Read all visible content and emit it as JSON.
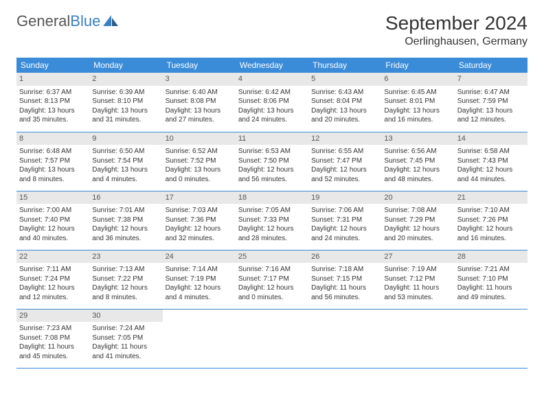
{
  "logo": {
    "text1": "General",
    "text2": "Blue"
  },
  "title": "September 2024",
  "location": "Oerlinghausen, Germany",
  "colors": {
    "header_bg": "#3a8bd8",
    "header_text": "#ffffff",
    "daynum_bg": "#e8e8e8",
    "border": "#3a8bd8",
    "text": "#333333",
    "logo_blue": "#3a7fc4"
  },
  "weekdays": [
    "Sunday",
    "Monday",
    "Tuesday",
    "Wednesday",
    "Thursday",
    "Friday",
    "Saturday"
  ],
  "days": [
    {
      "n": "1",
      "sr": "Sunrise: 6:37 AM",
      "ss": "Sunset: 8:13 PM",
      "dl": "Daylight: 13 hours and 35 minutes."
    },
    {
      "n": "2",
      "sr": "Sunrise: 6:39 AM",
      "ss": "Sunset: 8:10 PM",
      "dl": "Daylight: 13 hours and 31 minutes."
    },
    {
      "n": "3",
      "sr": "Sunrise: 6:40 AM",
      "ss": "Sunset: 8:08 PM",
      "dl": "Daylight: 13 hours and 27 minutes."
    },
    {
      "n": "4",
      "sr": "Sunrise: 6:42 AM",
      "ss": "Sunset: 8:06 PM",
      "dl": "Daylight: 13 hours and 24 minutes."
    },
    {
      "n": "5",
      "sr": "Sunrise: 6:43 AM",
      "ss": "Sunset: 8:04 PM",
      "dl": "Daylight: 13 hours and 20 minutes."
    },
    {
      "n": "6",
      "sr": "Sunrise: 6:45 AM",
      "ss": "Sunset: 8:01 PM",
      "dl": "Daylight: 13 hours and 16 minutes."
    },
    {
      "n": "7",
      "sr": "Sunrise: 6:47 AM",
      "ss": "Sunset: 7:59 PM",
      "dl": "Daylight: 13 hours and 12 minutes."
    },
    {
      "n": "8",
      "sr": "Sunrise: 6:48 AM",
      "ss": "Sunset: 7:57 PM",
      "dl": "Daylight: 13 hours and 8 minutes."
    },
    {
      "n": "9",
      "sr": "Sunrise: 6:50 AM",
      "ss": "Sunset: 7:54 PM",
      "dl": "Daylight: 13 hours and 4 minutes."
    },
    {
      "n": "10",
      "sr": "Sunrise: 6:52 AM",
      "ss": "Sunset: 7:52 PM",
      "dl": "Daylight: 13 hours and 0 minutes."
    },
    {
      "n": "11",
      "sr": "Sunrise: 6:53 AM",
      "ss": "Sunset: 7:50 PM",
      "dl": "Daylight: 12 hours and 56 minutes."
    },
    {
      "n": "12",
      "sr": "Sunrise: 6:55 AM",
      "ss": "Sunset: 7:47 PM",
      "dl": "Daylight: 12 hours and 52 minutes."
    },
    {
      "n": "13",
      "sr": "Sunrise: 6:56 AM",
      "ss": "Sunset: 7:45 PM",
      "dl": "Daylight: 12 hours and 48 minutes."
    },
    {
      "n": "14",
      "sr": "Sunrise: 6:58 AM",
      "ss": "Sunset: 7:43 PM",
      "dl": "Daylight: 12 hours and 44 minutes."
    },
    {
      "n": "15",
      "sr": "Sunrise: 7:00 AM",
      "ss": "Sunset: 7:40 PM",
      "dl": "Daylight: 12 hours and 40 minutes."
    },
    {
      "n": "16",
      "sr": "Sunrise: 7:01 AM",
      "ss": "Sunset: 7:38 PM",
      "dl": "Daylight: 12 hours and 36 minutes."
    },
    {
      "n": "17",
      "sr": "Sunrise: 7:03 AM",
      "ss": "Sunset: 7:36 PM",
      "dl": "Daylight: 12 hours and 32 minutes."
    },
    {
      "n": "18",
      "sr": "Sunrise: 7:05 AM",
      "ss": "Sunset: 7:33 PM",
      "dl": "Daylight: 12 hours and 28 minutes."
    },
    {
      "n": "19",
      "sr": "Sunrise: 7:06 AM",
      "ss": "Sunset: 7:31 PM",
      "dl": "Daylight: 12 hours and 24 minutes."
    },
    {
      "n": "20",
      "sr": "Sunrise: 7:08 AM",
      "ss": "Sunset: 7:29 PM",
      "dl": "Daylight: 12 hours and 20 minutes."
    },
    {
      "n": "21",
      "sr": "Sunrise: 7:10 AM",
      "ss": "Sunset: 7:26 PM",
      "dl": "Daylight: 12 hours and 16 minutes."
    },
    {
      "n": "22",
      "sr": "Sunrise: 7:11 AM",
      "ss": "Sunset: 7:24 PM",
      "dl": "Daylight: 12 hours and 12 minutes."
    },
    {
      "n": "23",
      "sr": "Sunrise: 7:13 AM",
      "ss": "Sunset: 7:22 PM",
      "dl": "Daylight: 12 hours and 8 minutes."
    },
    {
      "n": "24",
      "sr": "Sunrise: 7:14 AM",
      "ss": "Sunset: 7:19 PM",
      "dl": "Daylight: 12 hours and 4 minutes."
    },
    {
      "n": "25",
      "sr": "Sunrise: 7:16 AM",
      "ss": "Sunset: 7:17 PM",
      "dl": "Daylight: 12 hours and 0 minutes."
    },
    {
      "n": "26",
      "sr": "Sunrise: 7:18 AM",
      "ss": "Sunset: 7:15 PM",
      "dl": "Daylight: 11 hours and 56 minutes."
    },
    {
      "n": "27",
      "sr": "Sunrise: 7:19 AM",
      "ss": "Sunset: 7:12 PM",
      "dl": "Daylight: 11 hours and 53 minutes."
    },
    {
      "n": "28",
      "sr": "Sunrise: 7:21 AM",
      "ss": "Sunset: 7:10 PM",
      "dl": "Daylight: 11 hours and 49 minutes."
    },
    {
      "n": "29",
      "sr": "Sunrise: 7:23 AM",
      "ss": "Sunset: 7:08 PM",
      "dl": "Daylight: 11 hours and 45 minutes."
    },
    {
      "n": "30",
      "sr": "Sunrise: 7:24 AM",
      "ss": "Sunset: 7:05 PM",
      "dl": "Daylight: 11 hours and 41 minutes."
    }
  ]
}
